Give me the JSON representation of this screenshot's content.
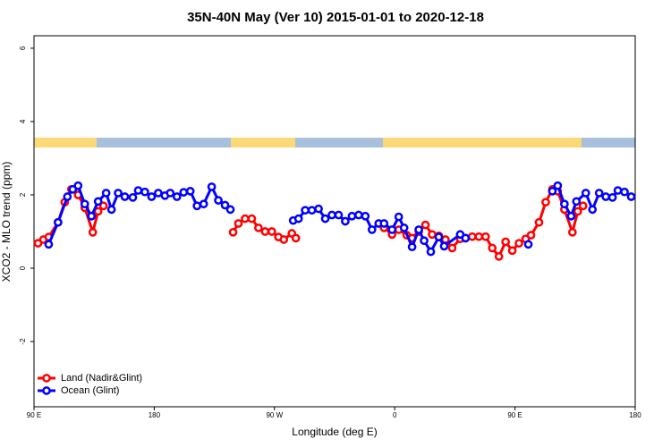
{
  "chart_data": {
    "type": "line",
    "title": "35N-40N May (Ver 10)   2015-01-01 to 2020-12-18",
    "x_label": "Longitude (deg E)",
    "y_label": "XCO2 - MLO trend (ppm)",
    "xlim": [
      90,
      540
    ],
    "xticks": [
      {
        "value": 90,
        "label": "90 E"
      },
      180,
      {
        "value": 270,
        "label": "90 W"
      },
      {
        "value": 360,
        "label": "0"
      },
      {
        "value": 450,
        "label": "90 E"
      },
      {
        "value": 540,
        "label": "180"
      }
    ],
    "ylim": [
      -3.78,
      6.34
    ],
    "yticks": [
      -2,
      0,
      2,
      4,
      6
    ],
    "legend": "bottom-left",
    "series": [
      {
        "name": "Land (Nadir&Glint)",
        "color": "#ff0000",
        "x": [
          93,
          97,
          101,
          108,
          113,
          118,
          123,
          128,
          134,
          138,
          142,
          null,
          239,
          243,
          248,
          253,
          258,
          263,
          268,
          273,
          277,
          283,
          286,
          null,
          352,
          358,
          363,
          369,
          373,
          378,
          383,
          388,
          393,
          398,
          403,
          409,
          413,
          418,
          423,
          428,
          433,
          438,
          443,
          448,
          453,
          458,
          462,
          468,
          473,
          478,
          482,
          487,
          493,
          497,
          501
        ],
        "values": [
          0.68,
          0.78,
          0.85,
          1.25,
          1.8,
          2.15,
          2.0,
          1.65,
          0.98,
          1.55,
          1.7,
          null,
          0.98,
          1.22,
          1.35,
          1.35,
          1.1,
          1.0,
          1.0,
          0.85,
          0.78,
          0.95,
          0.82,
          null,
          1.1,
          0.92,
          1.05,
          0.9,
          0.82,
          1.0,
          1.18,
          0.92,
          0.88,
          0.78,
          0.55,
          0.8,
          0.82,
          0.86,
          0.86,
          0.86,
          0.55,
          0.32,
          0.72,
          0.48,
          0.68,
          0.8,
          0.9,
          1.25,
          1.8,
          2.15,
          2.1,
          1.6,
          0.98,
          1.55,
          1.7
        ]
      },
      {
        "name": "Ocean (Glint)",
        "color": "#0000ff",
        "x": [
          101,
          108,
          115,
          119,
          123,
          128,
          133,
          138,
          144,
          148,
          153,
          158,
          164,
          168,
          173,
          178,
          183,
          188,
          192,
          197,
          202,
          207,
          212,
          217,
          223,
          228,
          233,
          237,
          null,
          284,
          288,
          293,
          298,
          303,
          308,
          313,
          318,
          323,
          328,
          333,
          338,
          343,
          348,
          352,
          358,
          363,
          367,
          373,
          378,
          382,
          387,
          393,
          397,
          409,
          413,
          null,
          460,
          null,
          478,
          482,
          487,
          492,
          496,
          503,
          508,
          513,
          518,
          523,
          527,
          532,
          537
        ],
        "values": [
          0.65,
          1.25,
          1.95,
          2.15,
          2.25,
          1.75,
          1.42,
          1.82,
          2.05,
          1.6,
          2.05,
          1.95,
          1.93,
          2.12,
          2.08,
          1.95,
          2.05,
          1.98,
          2.05,
          1.95,
          2.07,
          2.1,
          1.7,
          1.75,
          2.22,
          1.85,
          1.72,
          1.6,
          null,
          1.3,
          1.35,
          1.58,
          1.58,
          1.62,
          1.35,
          1.45,
          1.45,
          1.28,
          1.42,
          1.45,
          1.42,
          1.05,
          1.22,
          1.22,
          1.05,
          1.4,
          1.1,
          0.58,
          1.05,
          0.75,
          0.45,
          0.85,
          0.6,
          0.92,
          0.82,
          null,
          0.65,
          null,
          2.1,
          2.25,
          1.75,
          1.42,
          1.82,
          2.05,
          1.6,
          2.05,
          1.95,
          1.93,
          2.12,
          2.08,
          1.95
        ]
      }
    ]
  }
}
